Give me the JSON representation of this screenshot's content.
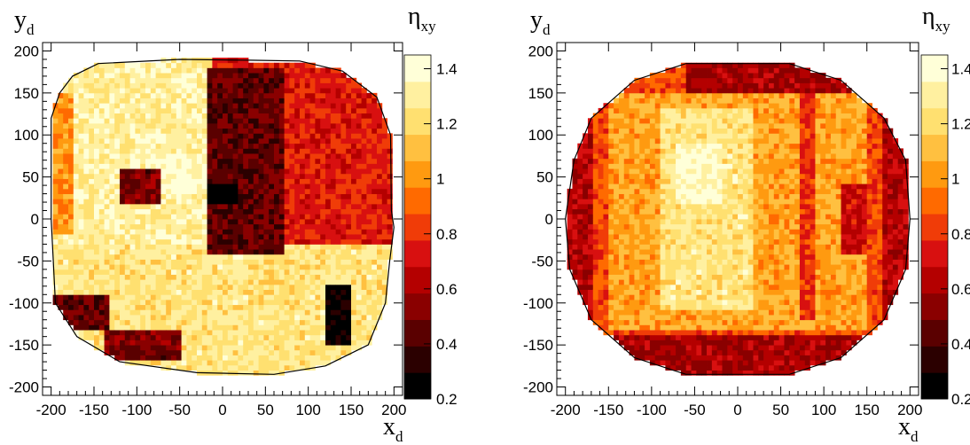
{
  "chart_data": [
    {
      "type": "heatmap",
      "title": "",
      "xlabel": "x",
      "xlabel_sub": "d",
      "ylabel": "y",
      "ylabel_sub": "d",
      "zlabel": "η",
      "zlabel_sub": "xy",
      "xlim": [
        -210,
        210
      ],
      "ylim": [
        -210,
        210
      ],
      "zlim": [
        0.2,
        1.45
      ],
      "x_ticks": [
        -200,
        -150,
        -100,
        -50,
        0,
        50,
        100,
        150,
        200
      ],
      "y_ticks": [
        -200,
        -150,
        -100,
        -50,
        0,
        50,
        100,
        150,
        200
      ],
      "z_ticks": [
        0.2,
        0.4,
        0.6,
        0.8,
        1,
        1.2,
        1.4
      ],
      "x_tick_labels": [
        "-200",
        "-150",
        "-100",
        "-50",
        "0",
        "50",
        "100",
        "150",
        "200"
      ],
      "y_tick_labels": [
        "-200",
        "-150",
        "-100",
        "-50",
        "0",
        "50",
        "100",
        "150",
        "200"
      ],
      "z_tick_labels": [
        "0.2",
        "0.4",
        "0.6",
        "0.8",
        "1",
        "1.2",
        "1.4"
      ],
      "grid": false,
      "colorbar": "right",
      "colormap": [
        "#000000",
        "#2b0000",
        "#5a0000",
        "#8a0000",
        "#b40000",
        "#d81010",
        "#f03c08",
        "#ff6a00",
        "#ff9a10",
        "#ffc040",
        "#ffe070",
        "#fff0a0",
        "#ffffd8"
      ],
      "outline": [
        [
          -200,
          120
        ],
        [
          -190,
          150
        ],
        [
          -175,
          170
        ],
        [
          -145,
          185
        ],
        [
          -50,
          190
        ],
        [
          30,
          189
        ],
        [
          90,
          188
        ],
        [
          140,
          176
        ],
        [
          180,
          145
        ],
        [
          196,
          100
        ],
        [
          197,
          10
        ],
        [
          200,
          -10
        ],
        [
          195,
          -50
        ],
        [
          190,
          -100
        ],
        [
          170,
          -150
        ],
        [
          120,
          -175
        ],
        [
          60,
          -185
        ],
        [
          -30,
          -183
        ],
        [
          -120,
          -170
        ],
        [
          -170,
          -140
        ],
        [
          -195,
          -100
        ],
        [
          -200,
          0
        ]
      ],
      "regions": [
        {
          "x": [
            -200,
            -10
          ],
          "y": [
            -30,
            190
          ],
          "value": 1.3
        },
        {
          "x": [
            -10,
            195
          ],
          "y": [
            -40,
            190
          ],
          "value": 0.75
        },
        {
          "x": [
            -200,
            200
          ],
          "y": [
            -185,
            -30
          ],
          "value": 1.25
        },
        {
          "x": [
            -20,
            70
          ],
          "y": [
            -40,
            180
          ],
          "value": 0.45
        },
        {
          "x": [
            -90,
            -20
          ],
          "y": [
            30,
            80
          ],
          "value": 1.4
        },
        {
          "x": [
            -120,
            -70
          ],
          "y": [
            20,
            60
          ],
          "value": 0.5
        },
        {
          "x": [
            -20,
            20
          ],
          "y": [
            20,
            40
          ],
          "value": 0.2
        },
        {
          "x": [
            120,
            150
          ],
          "y": [
            -150,
            -80
          ],
          "value": 0.25
        },
        {
          "x": [
            -200,
            -130
          ],
          "y": [
            -130,
            -90
          ],
          "value": 0.45
        },
        {
          "x": [
            -140,
            -50
          ],
          "y": [
            -170,
            -130
          ],
          "value": 0.5
        },
        {
          "x": [
            -200,
            -175
          ],
          "y": [
            -20,
            150
          ],
          "value": 1.0
        },
        {
          "x": [
            30,
            90
          ],
          "y": [
            -110,
            -50
          ],
          "value": 1.2
        }
      ]
    },
    {
      "type": "heatmap",
      "title": "",
      "xlabel": "x",
      "xlabel_sub": "d",
      "ylabel": "y",
      "ylabel_sub": "d",
      "zlabel": "η",
      "zlabel_sub": "xy",
      "xlim": [
        -210,
        210
      ],
      "ylim": [
        -210,
        210
      ],
      "zlim": [
        0.2,
        1.45
      ],
      "x_ticks": [
        -200,
        -150,
        -100,
        -50,
        0,
        50,
        100,
        150,
        200
      ],
      "y_ticks": [
        -200,
        -150,
        -100,
        -50,
        0,
        50,
        100,
        150,
        200
      ],
      "z_ticks": [
        0.2,
        0.4,
        0.6,
        0.8,
        1,
        1.2,
        1.4
      ],
      "x_tick_labels": [
        "-200",
        "-150",
        "-100",
        "-50",
        "0",
        "50",
        "100",
        "150",
        "200"
      ],
      "y_tick_labels": [
        "-200",
        "-150",
        "-100",
        "-50",
        "0",
        "50",
        "100",
        "150",
        "200"
      ],
      "z_tick_labels": [
        "0.2",
        "0.4",
        "0.6",
        "0.8",
        "1",
        "1.2",
        "1.4"
      ],
      "grid": false,
      "colorbar": "right",
      "colormap": [
        "#000000",
        "#2b0000",
        "#5a0000",
        "#8a0000",
        "#b40000",
        "#d81010",
        "#f03c08",
        "#ff6a00",
        "#ff9a10",
        "#ffc040",
        "#ffe070",
        "#fff0a0",
        "#ffffd8"
      ],
      "outline": [
        [
          -190,
          70
        ],
        [
          -170,
          120
        ],
        [
          -120,
          165
        ],
        [
          -60,
          185
        ],
        [
          60,
          185
        ],
        [
          120,
          165
        ],
        [
          170,
          120
        ],
        [
          195,
          70
        ],
        [
          200,
          0
        ],
        [
          195,
          -60
        ],
        [
          170,
          -120
        ],
        [
          120,
          -165
        ],
        [
          60,
          -185
        ],
        [
          -60,
          -185
        ],
        [
          -120,
          -165
        ],
        [
          -170,
          -120
        ],
        [
          -195,
          -60
        ],
        [
          -200,
          0
        ]
      ],
      "regions": [
        {
          "x": [
            -200,
            200
          ],
          "y": [
            -185,
            185
          ],
          "value": 0.85
        },
        {
          "x": [
            -150,
            150
          ],
          "y": [
            -130,
            150
          ],
          "value": 1.05
        },
        {
          "x": [
            -90,
            20
          ],
          "y": [
            -110,
            130
          ],
          "value": 1.25
        },
        {
          "x": [
            -70,
            -20
          ],
          "y": [
            20,
            90
          ],
          "value": 1.38
        },
        {
          "x": [
            -200,
            -170
          ],
          "y": [
            -150,
            150
          ],
          "value": 0.65
        },
        {
          "x": [
            170,
            200
          ],
          "y": [
            -150,
            150
          ],
          "value": 0.65
        },
        {
          "x": [
            -60,
            140
          ],
          "y": [
            150,
            185
          ],
          "value": 0.6
        },
        {
          "x": [
            -200,
            200
          ],
          "y": [
            -185,
            -140
          ],
          "value": 0.6
        },
        {
          "x": [
            70,
            90
          ],
          "y": [
            -120,
            150
          ],
          "value": 0.8
        },
        {
          "x": [
            120,
            150
          ],
          "y": [
            -40,
            40
          ],
          "value": 0.7
        }
      ]
    }
  ]
}
